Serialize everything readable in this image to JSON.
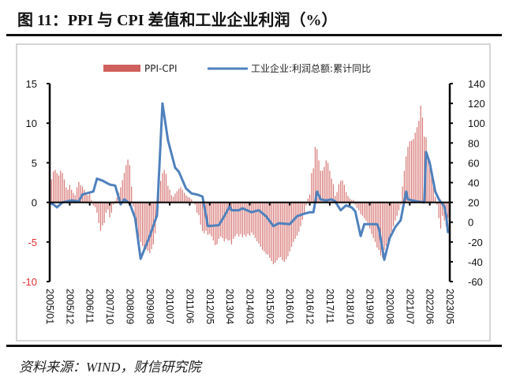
{
  "header": {
    "title": "图 11：PPI 与 CPI 差值和工业企业利润（%）"
  },
  "footer": {
    "source": "资料来源：WIND，财信研究院"
  },
  "chart_data": {
    "type": "bar+line",
    "title": "",
    "legend_position": "top",
    "grid": false,
    "x_tick_labels": [
      "2005/01",
      "2005/12",
      "2006/11",
      "2007/10",
      "2008/09",
      "2009/08",
      "2010/07",
      "2011/06",
      "2012/05",
      "2013/04",
      "2014/03",
      "2015/02",
      "2016/01",
      "2016/12",
      "2017/11",
      "2018/10",
      "2019/09",
      "2020/08",
      "2021/07",
      "2022/06",
      "2023/05"
    ],
    "left_axis": {
      "ylim": [
        -10,
        15
      ],
      "ticks": [
        15,
        10,
        5,
        0,
        -5,
        -10
      ],
      "negative_color": "#e03030"
    },
    "right_axis": {
      "ylim": [
        -60,
        140
      ],
      "ticks": [
        140,
        120,
        100,
        80,
        60,
        40,
        20,
        0,
        -20,
        -40,
        -60
      ]
    },
    "series": [
      {
        "name": "PPI-CPI",
        "type": "bar",
        "axis": "left",
        "color": "#d0605e",
        "values_by_year": {
          "2005": [
            1.5,
            2.9,
            3.9,
            4.1,
            3.7,
            3.4,
            4.0,
            3.7,
            2.9,
            1.9,
            1.6,
            2.2
          ],
          "2006": [
            1.6,
            1.2,
            0.9,
            1.9,
            2.6,
            2.2,
            2.0,
            1.6,
            1.1,
            0.9,
            1.1,
            0.3
          ],
          "2007": [
            -0.4,
            -0.6,
            -1.3,
            -2.6,
            -3.6,
            -2.9,
            -2.6,
            -1.3,
            -0.9,
            -1.9,
            -1.3,
            -0.3
          ],
          "2008": [
            0.2,
            0.6,
            1.2,
            1.9,
            2.8,
            3.7,
            4.7,
            5.4,
            4.7,
            2.0,
            -0.5,
            -2.5
          ],
          "2009": [
            -3.5,
            -4.5,
            -5.0,
            -5.5,
            -5.8,
            -5.9,
            -6.1,
            -6.4,
            -5.9,
            -5.3,
            -3.9,
            -1.3
          ],
          "2010": [
            2.9,
            2.7,
            3.7,
            4.1,
            3.6,
            2.1,
            1.6,
            0.9,
            0.7,
            1.1,
            1.4,
            1.7
          ],
          "2011": [
            1.9,
            1.6,
            1.2,
            0.9,
            0.7,
            0.6,
            0.4,
            0.1,
            -0.3,
            -1.3,
            -1.6,
            -2.8
          ],
          "2012": [
            -3.6,
            -3.9,
            -3.6,
            -4.1,
            -4.0,
            -4.3,
            -4.8,
            -5.4,
            -5.3,
            -4.6,
            -4.3,
            -4.5
          ],
          "2013": [
            -4.9,
            -4.6,
            -4.8,
            -4.8,
            -5.3,
            -4.6,
            -4.3,
            -4.0,
            -4.3,
            -4.0,
            -4.4,
            -4.1
          ],
          "2014": [
            -4.3,
            -4.0,
            -4.2,
            -3.8,
            -4.1,
            -4.5,
            -4.9,
            -5.2,
            -5.6,
            -6.0,
            -6.2,
            -6.5
          ],
          "2015": [
            -6.6,
            -7.0,
            -7.4,
            -7.8,
            -7.6,
            -7.3,
            -7.0,
            -6.9,
            -7.3,
            -7.5,
            -7.2,
            -6.8
          ],
          "2016": [
            -6.2,
            -5.6,
            -5.0,
            -4.6,
            -4.2,
            -3.7,
            -3.0,
            -2.2,
            -1.3,
            -0.4,
            0.5,
            1.0
          ],
          "2017": [
            3.7,
            4.3,
            7.0,
            6.7,
            5.3,
            4.0,
            4.0,
            4.5,
            5.3,
            5.0,
            4.0,
            3.0
          ],
          "2018": [
            2.3,
            0.8,
            1.3,
            2.3,
            2.7,
            2.8,
            2.2,
            1.3,
            0.8,
            0.5,
            0.3,
            0.3
          ],
          "2019": [
            -0.3,
            -0.7,
            -1.0,
            -1.5,
            -1.7,
            -2.0,
            -2.3,
            -2.7,
            -3.3,
            -4.0,
            -4.5,
            -5.0
          ],
          "2020": [
            -5.7,
            -6.0,
            -6.7,
            -7.0,
            -6.0,
            -5.5,
            -5.0,
            -4.3,
            -3.7,
            -3.0,
            -2.3,
            -1.7
          ],
          "2021": [
            -1.0,
            -0.3,
            2.0,
            4.0,
            5.8,
            7.0,
            7.7,
            7.8,
            8.0,
            8.8,
            9.5,
            10.3
          ],
          "2022": [
            12.2,
            10.7,
            8.3,
            8.2,
            6.0,
            4.7,
            4.0,
            3.0,
            0.7,
            -0.3,
            -2.0,
            -3.3
          ],
          "2023": [
            -1.7,
            -2.3,
            -3.0,
            -2.0,
            -3.5
          ]
        }
      },
      {
        "name": "工业企业:利润总额:累计同比",
        "type": "line",
        "axis": "right",
        "color": "#4f81bd",
        "points": [
          [
            "2005/01",
            19
          ],
          [
            "2005/03",
            18
          ],
          [
            "2005/05",
            15
          ],
          [
            "2005/08",
            20
          ],
          [
            "2006/01",
            22
          ],
          [
            "2006/05",
            21
          ],
          [
            "2006/07",
            28
          ],
          [
            "2007/01",
            31
          ],
          [
            "2007/03",
            44
          ],
          [
            "2007/06",
            42
          ],
          [
            "2007/10",
            38
          ],
          [
            "2008/01",
            37
          ],
          [
            "2008/04",
            18
          ],
          [
            "2008/06",
            23
          ],
          [
            "2008/09",
            19
          ],
          [
            "2008/12",
            4
          ],
          [
            "2009/03",
            -37
          ],
          [
            "2009/08",
            -14
          ],
          [
            "2009/12",
            7
          ],
          [
            "2010/03",
            120
          ],
          [
            "2010/06",
            83
          ],
          [
            "2010/10",
            55
          ],
          [
            "2010/12",
            51
          ],
          [
            "2011/04",
            34
          ],
          [
            "2011/07",
            29
          ],
          [
            "2011/10",
            28
          ],
          [
            "2012/01",
            26
          ],
          [
            "2012/04",
            -4
          ],
          [
            "2012/10",
            -3
          ],
          [
            "2013/01",
            6
          ],
          [
            "2013/04",
            16
          ],
          [
            "2013/05",
            12
          ],
          [
            "2013/09",
            12
          ],
          [
            "2013/11",
            14
          ],
          [
            "2014/04",
            10
          ],
          [
            "2014/08",
            12
          ],
          [
            "2014/12",
            6
          ],
          [
            "2015/04",
            -4
          ],
          [
            "2015/07",
            -1
          ],
          [
            "2016/01",
            -2
          ],
          [
            "2016/05",
            6
          ],
          [
            "2016/08",
            8
          ],
          [
            "2016/12",
            10
          ],
          [
            "2017/02",
            10
          ],
          [
            "2017/04",
            31
          ],
          [
            "2017/06",
            23
          ],
          [
            "2017/09",
            22
          ],
          [
            "2017/12",
            23
          ],
          [
            "2018/02",
            21
          ],
          [
            "2018/05",
            12
          ],
          [
            "2018/08",
            17
          ],
          [
            "2018/11",
            15
          ],
          [
            "2019/01",
            11
          ],
          [
            "2019/04",
            -14
          ],
          [
            "2019/06",
            -2
          ],
          [
            "2020/01",
            -2
          ],
          [
            "2020/02",
            -6
          ],
          [
            "2020/05",
            -38
          ],
          [
            "2020/08",
            -16
          ],
          [
            "2020/11",
            -5
          ],
          [
            "2021/02",
            2
          ],
          [
            "2021/05",
            31
          ],
          [
            "2021/06",
            23
          ],
          [
            "2021/11",
            21
          ],
          [
            "2022/03",
            20
          ],
          [
            "2022/04",
            71
          ],
          [
            "2022/06",
            60
          ],
          [
            "2022/09",
            31
          ],
          [
            "2022/11",
            23
          ],
          [
            "2023/02",
            16
          ],
          [
            "2023/03",
            7
          ],
          [
            "2023/04",
            -10
          ],
          [
            "2023/05",
            -9
          ]
        ]
      }
    ]
  }
}
